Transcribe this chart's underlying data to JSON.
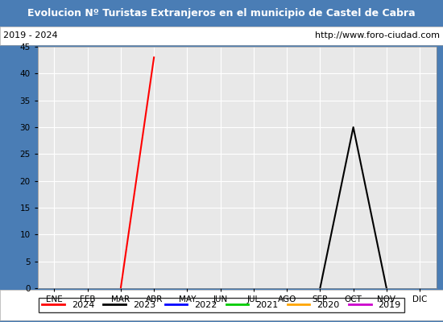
{
  "title": "Evolucion Nº Turistas Extranjeros en el municipio de Castel de Cabra",
  "subtitle_left": "2019 - 2024",
  "subtitle_right": "http://www.foro-ciudad.com",
  "title_bg_color": "#4a7db5",
  "title_text_color": "#ffffff",
  "subtitle_bg_color": "#ffffff",
  "subtitle_text_color": "#000000",
  "plot_bg_color": "#e8e8e8",
  "months": [
    "ENE",
    "FEB",
    "MAR",
    "ABR",
    "MAY",
    "JUN",
    "JUL",
    "AGO",
    "SEP",
    "OCT",
    "NOV",
    "DIC"
  ],
  "month_indices": [
    1,
    2,
    3,
    4,
    5,
    6,
    7,
    8,
    9,
    10,
    11,
    12
  ],
  "ylim": [
    0,
    45
  ],
  "yticks": [
    0,
    5,
    10,
    15,
    20,
    25,
    30,
    35,
    40,
    45
  ],
  "series": [
    {
      "label": "2024",
      "color": "#ff0000",
      "linewidth": 1.5,
      "data": {
        "3": 0,
        "4": 43
      }
    },
    {
      "label": "2023",
      "color": "#000000",
      "linewidth": 1.5,
      "data": {
        "9": 0,
        "10": 30,
        "11": 0
      }
    },
    {
      "label": "2022",
      "color": "#0000ff",
      "linewidth": 1.5,
      "data": {}
    },
    {
      "label": "2021",
      "color": "#00cc00",
      "linewidth": 1.5,
      "data": {}
    },
    {
      "label": "2020",
      "color": "#ffa500",
      "linewidth": 1.5,
      "data": {}
    },
    {
      "label": "2019",
      "color": "#cc00cc",
      "linewidth": 1.5,
      "data": {}
    }
  ],
  "grid_color": "#ffffff",
  "grid_linewidth": 0.8,
  "border_color": "#4a7db5",
  "fig_width": 5.5,
  "fig_height": 4.0,
  "dpi": 100
}
